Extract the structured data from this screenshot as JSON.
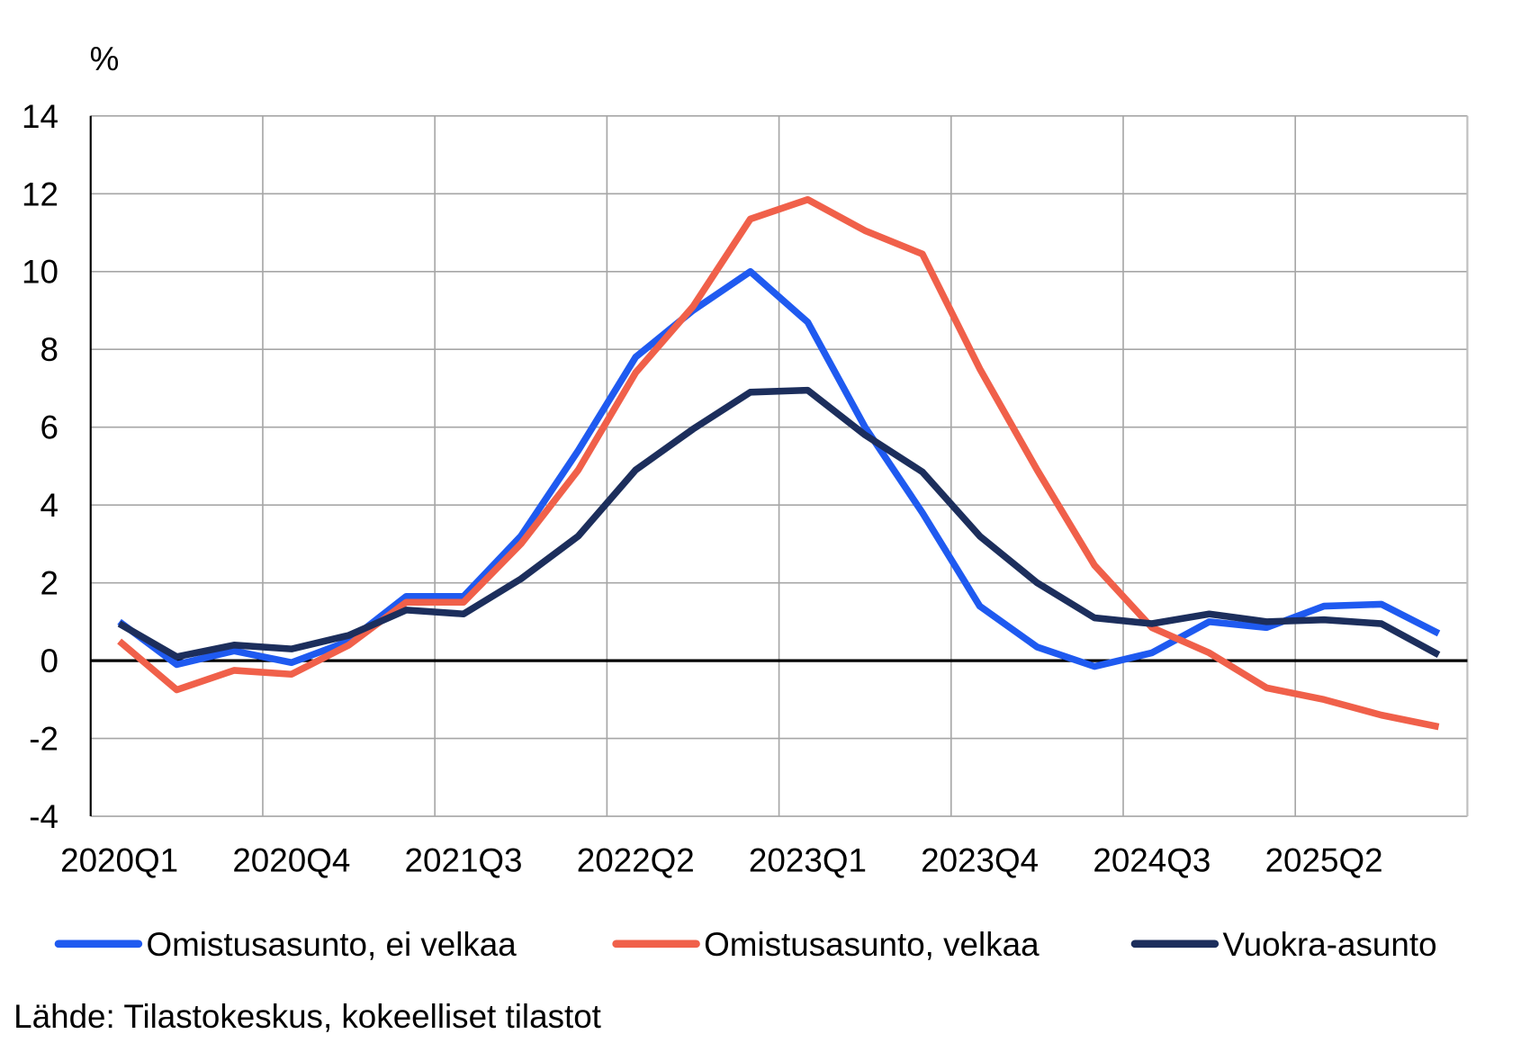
{
  "chart_data": {
    "type": "line",
    "ylabel": "%",
    "ylim": [
      -4,
      14
    ],
    "yticks": [
      14,
      12,
      10,
      8,
      6,
      4,
      2,
      0,
      -2,
      -4
    ],
    "grid": true,
    "legend_position": "bottom",
    "categories": [
      "2020Q1",
      "2020Q2",
      "2020Q3",
      "2020Q4",
      "2021Q1",
      "2021Q2",
      "2021Q3",
      "2021Q4",
      "2022Q1",
      "2022Q2",
      "2022Q3",
      "2022Q4",
      "2023Q1",
      "2023Q2",
      "2023Q3",
      "2023Q4",
      "2024Q1",
      "2024Q2",
      "2024Q3",
      "2024Q4",
      "2025Q1",
      "2025Q2",
      "2025Q3",
      "2025Q4"
    ],
    "xtick_labels": [
      "2020Q1",
      "2020Q4",
      "2021Q3",
      "2022Q2",
      "2023Q1",
      "2023Q4",
      "2024Q3",
      "2025Q2"
    ],
    "series": [
      {
        "name": "Omistusasunto, ei velkaa",
        "color": "#1f5af0",
        "values": [
          1.0,
          -0.1,
          0.25,
          -0.05,
          0.5,
          1.65,
          1.65,
          3.2,
          5.4,
          7.8,
          9.0,
          10.0,
          8.7,
          6.0,
          3.8,
          1.4,
          0.35,
          -0.15,
          0.2,
          1.0,
          0.85,
          1.4,
          1.45,
          0.7
        ]
      },
      {
        "name": "Omistusasunto, velkaa",
        "color": "#f0604a",
        "values": [
          0.5,
          -0.75,
          -0.25,
          -0.35,
          0.4,
          1.5,
          1.5,
          3.0,
          4.9,
          7.4,
          9.1,
          11.35,
          11.85,
          11.05,
          10.45,
          7.5,
          4.9,
          2.45,
          0.85,
          0.2,
          -0.7,
          -1.0,
          -1.4,
          -1.7
        ]
      },
      {
        "name": "Vuokra-asunto",
        "color": "#1c2e5c",
        "values": [
          0.95,
          0.1,
          0.4,
          0.3,
          0.65,
          1.3,
          1.2,
          2.1,
          3.2,
          4.9,
          5.95,
          6.9,
          6.95,
          5.8,
          4.85,
          3.2,
          2.0,
          1.1,
          0.95,
          1.2,
          1.0,
          1.05,
          0.95,
          0.15
        ]
      }
    ]
  },
  "source": "Lähde: Tilastokeskus, kokeelliset tilastot"
}
